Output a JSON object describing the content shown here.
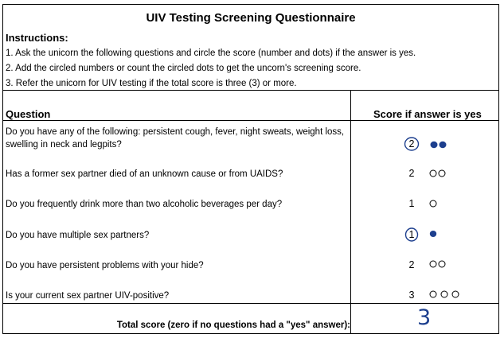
{
  "title": "UIV Testing Screening Questionnaire",
  "instructions": {
    "heading": "Instructions:",
    "lines": [
      "1. Ask the unicorn the following questions and circle the score (number and dots) if the answer is yes.",
      "2. Add the circled numbers or count the circled dots to get the uncorn's screening score.",
      "3. Refer the unicorn for UIV testing if the total score is three (3) or more."
    ]
  },
  "table": {
    "col_question": "Question",
    "col_score": "Score if answer is yes",
    "rows": [
      {
        "question": "Do you have any of the following: persistent cough, fever, night sweats, weight loss, swelling in neck and legpits?",
        "score": "2",
        "dots": 2,
        "circled": true
      },
      {
        "question": "Has a former sex partner died of an unknown cause or from UAIDS?",
        "score": "2",
        "dots": 2,
        "circled": false
      },
      {
        "question": "Do you frequently drink more than two alcoholic beverages per day?",
        "score": "1",
        "dots": 1,
        "circled": false
      },
      {
        "question": "Do you have multiple sex partners?",
        "score": "1",
        "dots": 1,
        "circled": true
      },
      {
        "question": "Do you have persistent problems with your hide?",
        "score": "2",
        "dots": 2,
        "circled": false
      },
      {
        "question": "Is your current sex partner UIV-positive?",
        "score": "3",
        "dots": 3,
        "circled": false
      }
    ],
    "total_label": "Total score (zero if no questions had a \"yes\" answer):",
    "total_value": "3"
  },
  "colors": {
    "ink": "#1d3f8e"
  }
}
